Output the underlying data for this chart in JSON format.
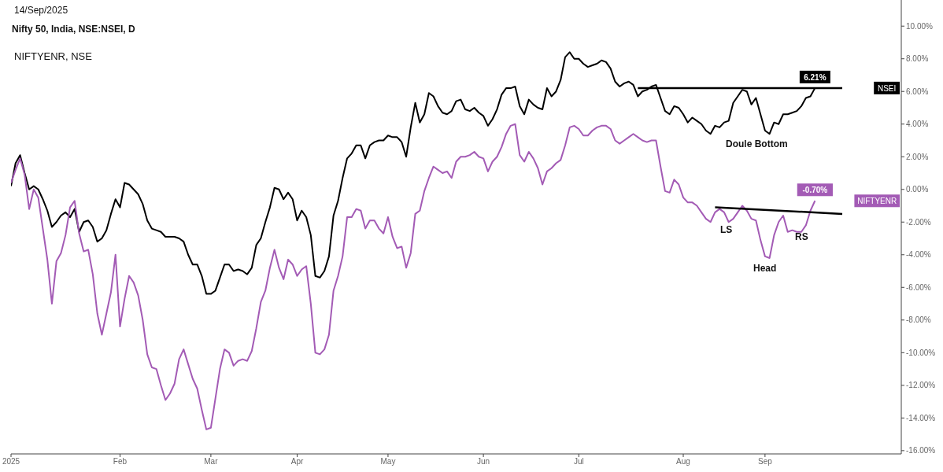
{
  "chart_data": {
    "type": "line",
    "title": "Nifty 50, India, NSE:NSEI, D",
    "subtitle": "NIFTYENR, NSE",
    "annotations": [
      "14/Sep/2025",
      "Doule Bottom",
      "LS",
      "Head",
      "RS"
    ],
    "categories": [
      "2025",
      null,
      null,
      null,
      null,
      null,
      null,
      null,
      null,
      null,
      null,
      null,
      null,
      null,
      null,
      null,
      null,
      null,
      null,
      null,
      null,
      null,
      null,
      null,
      "Feb",
      null,
      null,
      null,
      null,
      null,
      null,
      null,
      null,
      null,
      null,
      null,
      null,
      null,
      null,
      null,
      null,
      null,
      null,
      null,
      "Mar",
      null,
      null,
      null,
      null,
      null,
      null,
      null,
      null,
      null,
      null,
      null,
      null,
      null,
      null,
      null,
      null,
      null,
      null,
      "Apr",
      null,
      null,
      null,
      null,
      null,
      null,
      null,
      null,
      null,
      null,
      null,
      null,
      null,
      null,
      null,
      null,
      null,
      null,
      null,
      "May",
      null,
      null,
      null,
      null,
      null,
      null,
      null,
      null,
      null,
      null,
      null,
      null,
      null,
      null,
      null,
      null,
      null,
      null,
      null,
      null,
      "Jun",
      null,
      null,
      null,
      null,
      null,
      null,
      null,
      null,
      null,
      null,
      null,
      null,
      null,
      null,
      null,
      null,
      null,
      null,
      null,
      null,
      "Jul",
      null,
      null,
      null,
      null,
      null,
      null,
      null,
      null,
      null,
      null,
      null,
      null,
      null,
      null,
      null,
      null,
      null,
      null,
      null,
      null,
      null,
      null,
      "Aug",
      null,
      null,
      null,
      null,
      null,
      null,
      null,
      null,
      null,
      null,
      null,
      null,
      null,
      null,
      null,
      null,
      null,
      "Sep",
      null,
      null,
      null,
      null,
      null,
      null,
      null,
      null,
      null,
      null,
      null,
      null,
      null,
      null,
      null,
      null,
      null,
      null,
      null,
      null,
      null,
      null,
      null,
      null,
      null,
      null,
      null,
      null,
      null,
      null
    ],
    "series": [
      {
        "name": "NSEI",
        "color": "#000000",
        "value_labels": [
          null,
          null,
          null,
          null,
          null,
          null,
          null,
          null,
          null,
          null,
          null,
          null,
          null,
          null,
          null,
          null,
          null,
          null,
          null,
          null,
          null,
          null,
          null,
          null,
          null,
          null,
          null,
          null,
          null,
          null,
          null,
          null,
          null,
          null,
          null,
          null,
          null,
          null,
          null,
          null,
          null,
          null,
          null,
          null,
          null,
          null,
          null,
          null,
          null,
          null,
          null,
          null,
          null,
          null,
          null,
          null,
          null,
          null,
          null,
          null,
          null,
          null,
          null,
          null,
          null,
          null,
          null,
          null,
          null,
          null,
          null,
          null,
          null,
          null,
          null,
          null,
          null,
          null,
          null,
          null,
          null,
          null,
          null,
          null,
          null,
          null,
          null,
          null,
          null,
          null,
          null,
          null,
          null,
          null,
          null,
          null,
          null,
          null,
          null,
          null,
          null,
          null,
          null,
          null,
          null,
          null,
          null,
          null,
          null,
          null,
          null,
          null,
          null,
          null,
          null,
          null,
          null,
          null,
          null,
          null,
          null,
          null,
          null,
          null,
          null,
          null,
          null,
          null,
          null,
          null,
          null,
          null,
          null,
          null,
          null,
          null,
          null,
          null,
          null,
          null,
          null,
          null,
          null,
          null,
          null,
          null,
          null,
          null,
          null,
          null,
          null,
          null,
          null,
          null,
          null,
          null,
          null,
          null,
          null,
          null,
          null,
          null,
          null,
          null,
          null,
          null,
          null,
          null,
          null,
          null,
          null,
          null,
          null,
          null,
          null,
          null,
          null,
          "6.21%",
          null,
          null,
          null,
          null,
          null,
          null,
          null,
          null,
          null,
          null,
          null,
          null,
          null,
          null,
          null,
          null,
          null,
          null,
          null
        ],
        "values": [
          0.2,
          1.6,
          2.1,
          1.0,
          0.0,
          0.2,
          0.0,
          -0.6,
          -1.3,
          -2.3,
          -2.0,
          -1.6,
          -1.4,
          -1.7,
          -1.2,
          -2.6,
          -2.0,
          -1.9,
          -2.3,
          -3.2,
          -3.0,
          -2.5,
          -1.5,
          -0.6,
          -1.1,
          0.4,
          0.3,
          0.0,
          -0.3,
          -0.9,
          -1.9,
          -2.4,
          -2.5,
          -2.6,
          -2.9,
          -2.9,
          -2.9,
          -3.0,
          -3.2,
          -4.0,
          -4.6,
          -4.6,
          -5.3,
          -6.4,
          -6.4,
          -6.2,
          -5.4,
          -4.6,
          -4.6,
          -5.0,
          -4.9,
          -5.0,
          -5.2,
          -4.8,
          -3.4,
          -3.0,
          -2.0,
          -1.1,
          0.1,
          0.0,
          -0.6,
          -0.2,
          -0.6,
          -1.9,
          -1.3,
          -1.7,
          -2.8,
          -5.3,
          -5.4,
          -5.0,
          -4.1,
          -1.6,
          -0.7,
          0.7,
          1.9,
          2.2,
          2.7,
          2.7,
          1.9,
          2.7,
          2.9,
          3.0,
          3.0,
          3.3,
          3.2,
          3.2,
          2.9,
          2.0,
          3.8,
          5.3,
          4.1,
          4.6,
          5.9,
          5.7,
          5.1,
          4.7,
          4.6,
          4.8,
          5.4,
          5.5,
          4.9,
          4.8,
          5.0,
          4.7,
          4.5,
          3.9,
          4.3,
          4.9,
          5.8,
          6.2,
          6.2,
          6.3,
          5.1,
          4.6,
          5.5,
          5.2,
          5.0,
          4.9,
          6.2,
          5.7,
          6.0,
          6.7,
          8.1,
          8.4,
          8.0,
          8.0,
          7.7,
          7.5,
          7.6,
          7.7,
          7.9,
          7.8,
          7.4,
          6.6,
          6.3,
          6.5,
          6.6,
          6.4,
          5.7,
          6.0,
          6.1,
          6.3,
          6.4,
          5.6,
          4.8,
          4.6,
          5.1,
          5.0,
          4.6,
          4.1,
          4.4,
          4.2,
          4.0,
          3.6,
          3.4,
          3.9,
          3.8,
          4.1,
          4.2,
          5.3,
          5.7,
          6.1,
          6.0,
          5.2,
          5.6,
          4.6,
          3.6,
          3.4,
          4.1,
          4.0,
          4.6,
          4.6,
          4.7,
          4.8,
          5.1,
          5.6,
          5.7,
          6.21,
          null,
          null,
          null,
          null,
          null,
          null,
          null,
          null,
          null,
          null,
          null,
          null,
          null,
          null,
          null,
          null,
          null,
          null,
          null
        ]
      },
      {
        "name": "NIFTYENR",
        "color": "#a35bb5",
        "value_labels": [
          null,
          null,
          null,
          null,
          null,
          null,
          null,
          null,
          null,
          null,
          null,
          null,
          null,
          null,
          null,
          null,
          null,
          null,
          null,
          null,
          null,
          null,
          null,
          null,
          null,
          null,
          null,
          null,
          null,
          null,
          null,
          null,
          null,
          null,
          null,
          null,
          null,
          null,
          null,
          null,
          null,
          null,
          null,
          null,
          null,
          null,
          null,
          null,
          null,
          null,
          null,
          null,
          null,
          null,
          null,
          null,
          null,
          null,
          null,
          null,
          null,
          null,
          null,
          null,
          null,
          null,
          null,
          null,
          null,
          null,
          null,
          null,
          null,
          null,
          null,
          null,
          null,
          null,
          null,
          null,
          null,
          null,
          null,
          null,
          null,
          null,
          null,
          null,
          null,
          null,
          null,
          null,
          null,
          null,
          null,
          null,
          null,
          null,
          null,
          null,
          null,
          null,
          null,
          null,
          null,
          null,
          null,
          null,
          null,
          null,
          null,
          null,
          null,
          null,
          null,
          null,
          null,
          null,
          null,
          null,
          null,
          null,
          null,
          null,
          null,
          null,
          null,
          null,
          null,
          null,
          null,
          null,
          null,
          null,
          null,
          null,
          null,
          null,
          null,
          null,
          null,
          null,
          null,
          null,
          null,
          null,
          null,
          null,
          null,
          null,
          null,
          null,
          null,
          null,
          null,
          null,
          null,
          null,
          null,
          null,
          null,
          null,
          null,
          null,
          null,
          null,
          null,
          null,
          null,
          null,
          null,
          null,
          null,
          null,
          null,
          null,
          null,
          "-0.70%",
          null,
          null,
          null,
          null,
          null,
          null,
          null,
          null,
          null,
          null,
          null,
          null,
          null,
          null,
          null,
          null,
          null,
          null,
          null
        ],
        "values": [
          0.4,
          1.2,
          1.9,
          0.9,
          -1.2,
          0.0,
          -0.5,
          -2.4,
          -4.3,
          -7.0,
          -4.4,
          -3.9,
          -2.8,
          -1.1,
          -0.7,
          -2.7,
          -3.8,
          -3.7,
          -5.2,
          -7.6,
          -8.9,
          -7.6,
          -6.3,
          -4.0,
          -8.4,
          -6.7,
          -5.3,
          -5.7,
          -6.5,
          -8.0,
          -10.1,
          -10.9,
          -11.0,
          -12.0,
          -12.9,
          -12.5,
          -11.9,
          -10.4,
          -9.8,
          -10.7,
          -11.6,
          -12.2,
          -13.5,
          -14.7,
          -14.6,
          -12.8,
          -11.0,
          -9.8,
          -10.0,
          -10.8,
          -10.5,
          -10.4,
          -10.5,
          -9.9,
          -8.5,
          -6.9,
          -6.2,
          -4.8,
          -3.7,
          -4.8,
          -5.5,
          -4.3,
          -4.6,
          -5.3,
          -4.9,
          -4.7,
          -7.0,
          -10.0,
          -10.1,
          -9.8,
          -8.9,
          -6.2,
          -5.3,
          -4.1,
          -1.7,
          -1.7,
          -1.2,
          -1.3,
          -2.4,
          -1.9,
          -1.9,
          -2.4,
          -2.7,
          -1.7,
          -2.9,
          -3.6,
          -3.5,
          -4.8,
          -3.9,
          -1.5,
          -1.3,
          -0.1,
          0.7,
          1.4,
          1.2,
          1.0,
          1.1,
          0.7,
          1.7,
          2.0,
          2.0,
          2.1,
          2.3,
          2.0,
          1.9,
          1.1,
          1.7,
          2.0,
          2.6,
          3.4,
          3.9,
          4.0,
          2.1,
          1.7,
          2.3,
          1.9,
          1.3,
          0.3,
          1.1,
          1.3,
          1.6,
          1.8,
          2.7,
          3.8,
          3.9,
          3.7,
          3.3,
          3.3,
          3.6,
          3.8,
          3.9,
          3.9,
          3.7,
          3.0,
          2.8,
          3.0,
          3.2,
          3.4,
          3.2,
          3.0,
          2.9,
          3.0,
          3.0,
          1.4,
          -0.1,
          -0.2,
          0.6,
          0.3,
          -0.5,
          -0.8,
          -0.8,
          -1.0,
          -1.4,
          -1.8,
          -2.0,
          -1.4,
          -1.2,
          -1.4,
          -2.0,
          -1.8,
          -1.4,
          -1.0,
          -1.3,
          -1.8,
          -1.9,
          -3.1,
          -4.1,
          -4.2,
          -2.8,
          -2.0,
          -1.6,
          -2.6,
          -2.5,
          -2.6,
          -2.6,
          -2.2,
          -1.3,
          -0.7,
          null,
          null,
          null,
          null,
          null,
          null,
          null,
          null,
          null,
          null,
          null,
          null,
          null,
          null,
          null,
          null,
          null,
          null,
          null
        ]
      },
      {
        "type": "line",
        "color": "#000000",
        "values": [
          null,
          null,
          null,
          null,
          null,
          null,
          null,
          null,
          null,
          null,
          null,
          null,
          null,
          null,
          null,
          null,
          null,
          null,
          null,
          null,
          null,
          null,
          null,
          null,
          null,
          null,
          null,
          null,
          null,
          null,
          null,
          null,
          null,
          null,
          null,
          null,
          null,
          null,
          null,
          null,
          null,
          null,
          null,
          null,
          null,
          null,
          null,
          null,
          null,
          null,
          null,
          null,
          null,
          null,
          null,
          null,
          null,
          null,
          null,
          null,
          null,
          null,
          null,
          null,
          null,
          null,
          null,
          null,
          null,
          null,
          null,
          null,
          null,
          null,
          null,
          null,
          null,
          null,
          null,
          null,
          null,
          null,
          null,
          null,
          null,
          null,
          null,
          null,
          null,
          null,
          null,
          null,
          null,
          null,
          null,
          null,
          null,
          null,
          null,
          null,
          null,
          null,
          null,
          null,
          null,
          null,
          null,
          null,
          null,
          null,
          null,
          null,
          null,
          null,
          null,
          null,
          null,
          null,
          null,
          null,
          null,
          null,
          null,
          null,
          null,
          null,
          null,
          null,
          null,
          null,
          null,
          null,
          null,
          null,
          null,
          null,
          null,
          null,
          6.2,
          null,
          null,
          null,
          null,
          null,
          null,
          null,
          null,
          null,
          null,
          null,
          null,
          null,
          null,
          null,
          null,
          null,
          null,
          null,
          null,
          null,
          null,
          null,
          null,
          null,
          null,
          null,
          null,
          null,
          null,
          null,
          null,
          null,
          null,
          null,
          null,
          null,
          null,
          null,
          null,
          null,
          null,
          null,
          null,
          6.2,
          null,
          null,
          null,
          null,
          null,
          null,
          null,
          null,
          null,
          null,
          null,
          null,
          null
        ]
      },
      {
        "type": "line",
        "color": "#000000",
        "values": [
          null,
          null,
          null,
          null,
          null,
          null,
          null,
          null,
          null,
          null,
          null,
          null,
          null,
          null,
          null,
          null,
          null,
          null,
          null,
          null,
          null,
          null,
          null,
          null,
          null,
          null,
          null,
          null,
          null,
          null,
          null,
          null,
          null,
          null,
          null,
          null,
          null,
          null,
          null,
          null,
          null,
          null,
          null,
          null,
          null,
          null,
          null,
          null,
          null,
          null,
          null,
          null,
          null,
          null,
          null,
          null,
          null,
          null,
          null,
          null,
          null,
          null,
          null,
          null,
          null,
          null,
          null,
          null,
          null,
          null,
          null,
          null,
          null,
          null,
          null,
          null,
          null,
          null,
          null,
          null,
          null,
          null,
          null,
          null,
          null,
          null,
          null,
          null,
          null,
          null,
          null,
          null,
          null,
          null,
          null,
          null,
          null,
          null,
          null,
          null,
          null,
          null,
          null,
          null,
          null,
          null,
          null,
          null,
          null,
          null,
          null,
          null,
          null,
          null,
          null,
          null,
          null,
          null,
          null,
          null,
          null,
          null,
          null,
          null,
          null,
          null,
          null,
          null,
          null,
          null,
          null,
          null,
          null,
          null,
          null,
          null,
          null,
          null,
          null,
          null,
          null,
          null,
          null,
          null,
          null,
          null,
          null,
          null,
          null,
          null,
          null,
          null,
          null,
          null,
          null,
          -1.1,
          null,
          null,
          null,
          null,
          null,
          null,
          null,
          null,
          null,
          null,
          null,
          null,
          null,
          null,
          null,
          null,
          null,
          null,
          null,
          null,
          null,
          null,
          null,
          null,
          null,
          null,
          null,
          -1.5,
          null,
          null,
          null,
          null,
          null,
          null,
          null,
          null,
          null,
          null,
          null,
          null,
          null
        ]
      }
    ],
    "legend": "right",
    "ylim": [
      -16.2,
      11.6
    ],
    "yticks": [
      {
        "value": 10,
        "label": "10.00%"
      },
      {
        "value": 8,
        "label": "8.00%"
      },
      {
        "value": 6,
        "label": "6.00%"
      },
      {
        "value": 4,
        "label": "4.00%"
      },
      {
        "value": 2,
        "label": "2.00%"
      },
      {
        "value": 0,
        "label": "0.00%"
      },
      {
        "value": -2,
        "label": "-2.00%"
      },
      {
        "value": -4,
        "label": "-4.00%"
      },
      {
        "value": -6,
        "label": "-6.00%"
      },
      {
        "value": -8,
        "label": "-8.00%"
      },
      {
        "value": -10,
        "label": "-10.00%"
      },
      {
        "value": -12,
        "label": "-12.00%"
      },
      {
        "value": -14,
        "label": "-14.00%"
      },
      {
        "value": -16,
        "label": "-16.00%"
      }
    ]
  }
}
